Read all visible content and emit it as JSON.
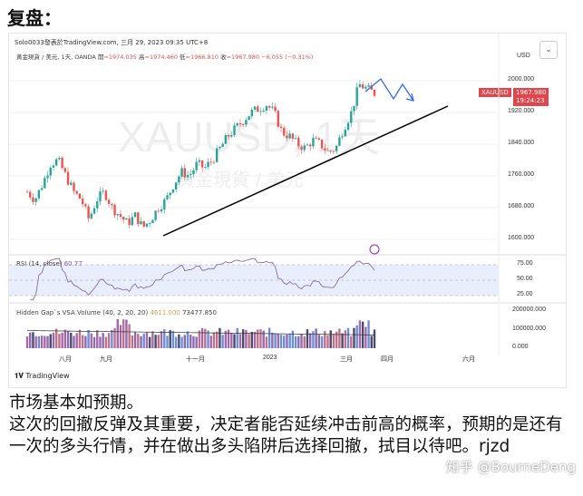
{
  "post_title": "复盘：",
  "chart": {
    "header": "Solo0033發表於TradingView.com, 三月 29, 2023 09:35 UTC+8",
    "symbol_line": "黃金現貨 / 美元, 1天, OANDA",
    "open_label": "開",
    "open": "=1974.035",
    "high_label": "高",
    "high": "=1974.460",
    "low_label": "低",
    "low": "=1966.810",
    "close_label": "收",
    "close": "=1967.980",
    "change": "−6.055 (−0.31%)",
    "currency": "USD",
    "watermark_symbol": "XAUUSD, 1天",
    "watermark_name": "黃金現貨 / 美元",
    "price_ticks": [
      "2000.000",
      "1920.000",
      "1840.000",
      "1760.000",
      "1680.000",
      "1600.000"
    ],
    "last_price_symbol": "XAUUSD",
    "last_price": "1967.980",
    "countdown": "19:24:23",
    "closes": [
      1720,
      1700,
      1740,
      1790,
      1800,
      1760,
      1720,
      1700,
      1650,
      1700,
      1720,
      1680,
      1660,
      1640,
      1660,
      1630,
      1650,
      1680,
      1700,
      1740,
      1770,
      1760,
      1790,
      1780,
      1800,
      1830,
      1860,
      1880,
      1900,
      1920,
      1930,
      1940,
      1920,
      1870,
      1860,
      1840,
      1830,
      1850,
      1840,
      1820,
      1830,
      1880,
      1920,
      1990,
      1980,
      1968
    ],
    "up_color": "#26a69a",
    "down_color": "#ef5350",
    "rsi": {
      "label": "RSI (14, close)",
      "value": "60.77",
      "ticks": [
        "75.00",
        "50.00",
        "25.00"
      ],
      "color": "#7e57c2"
    },
    "volume": {
      "label": "Hidden Gap`s VSA Volume (40, 2, 20, 20)",
      "value1": "4611.000",
      "value2": "73477.850",
      "ticks": [
        "200000.000",
        "100000.000",
        "0.000"
      ]
    },
    "time_ticks": [
      "八月",
      "九月",
      "十一月",
      "2023",
      "三月",
      "四月",
      "六月"
    ],
    "brand": "TradingView"
  },
  "body_text": [
    "市场基本如预期。",
    "这次的回撤反弹及其重要，决定者能否延续冲击前高的概率，预期的是还有一次的多头行情，并在做出多头陷阱后选择回撤，拭目以待吧。rjzd"
  ],
  "watermark": "知乎 @BourneDeng"
}
